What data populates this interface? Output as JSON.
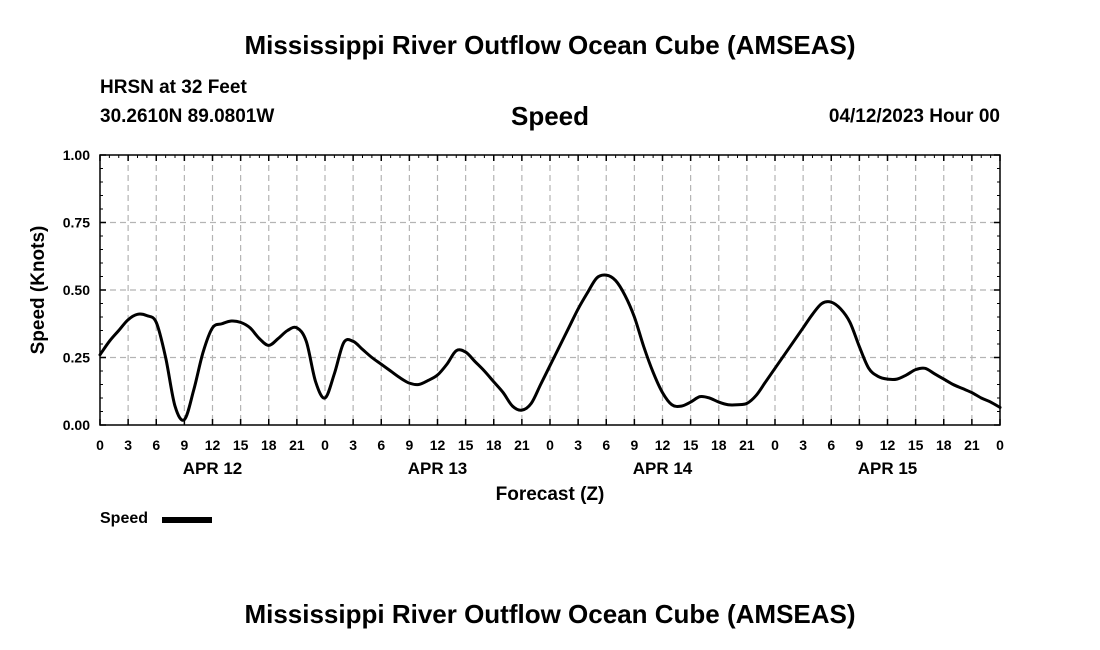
{
  "header": {
    "title": "Mississippi River Outflow Ocean Cube (AMSEAS)",
    "station": "HRSN at 32 Feet",
    "coords": "30.2610N  89.0801W",
    "variable": "Speed",
    "run_time": "04/12/2023 Hour 00"
  },
  "footer": {
    "title": "Mississippi River Outflow Ocean Cube (AMSEAS)"
  },
  "legend": {
    "label": "Speed"
  },
  "chart_data": {
    "type": "line",
    "xlabel": "Forecast (Z)",
    "ylabel": "Speed (Knots)",
    "ylim": [
      0,
      1.0
    ],
    "xlim_hours": [
      0,
      96
    ],
    "yticks": [
      "0.00",
      "0.25",
      "0.50",
      "0.75",
      "1.00"
    ],
    "xtick_labels": [
      "0",
      "3",
      "6",
      "9",
      "12",
      "15",
      "18",
      "21",
      "0",
      "3",
      "6",
      "9",
      "12",
      "15",
      "18",
      "21",
      "0",
      "3",
      "6",
      "9",
      "12",
      "15",
      "18",
      "21",
      "0",
      "3",
      "6",
      "9",
      "12",
      "15",
      "18",
      "21",
      "0"
    ],
    "day_labels": [
      {
        "label": "APR 12",
        "hour": 12
      },
      {
        "label": "APR 13",
        "hour": 36
      },
      {
        "label": "APR 14",
        "hour": 60
      },
      {
        "label": "APR 15",
        "hour": 84
      }
    ],
    "grid": true,
    "legend_position": "bottom-left",
    "line_color": "#000000",
    "series": [
      {
        "name": "Speed",
        "x": [
          0,
          1,
          2,
          3,
          4,
          5,
          6,
          7,
          8,
          9,
          10,
          11,
          12,
          13,
          14,
          15,
          16,
          17,
          18,
          19,
          20,
          21,
          22,
          23,
          24,
          25,
          26,
          27,
          28,
          29,
          30,
          31,
          32,
          33,
          34,
          35,
          36,
          37,
          38,
          39,
          40,
          41,
          42,
          43,
          44,
          45,
          46,
          47,
          48,
          49,
          50,
          51,
          52,
          53,
          54,
          55,
          56,
          57,
          58,
          59,
          60,
          61,
          62,
          63,
          64,
          65,
          66,
          67,
          68,
          69,
          70,
          71,
          72,
          73,
          74,
          75,
          76,
          77,
          78,
          79,
          80,
          81,
          82,
          83,
          84,
          85,
          86,
          87,
          88,
          89,
          90,
          91,
          92,
          93,
          94,
          95,
          96
        ],
        "values": [
          0.26,
          0.31,
          0.35,
          0.39,
          0.41,
          0.405,
          0.38,
          0.25,
          0.07,
          0.02,
          0.13,
          0.27,
          0.36,
          0.375,
          0.385,
          0.38,
          0.36,
          0.32,
          0.295,
          0.32,
          0.35,
          0.36,
          0.31,
          0.16,
          0.1,
          0.19,
          0.305,
          0.31,
          0.28,
          0.25,
          0.225,
          0.2,
          0.175,
          0.155,
          0.15,
          0.165,
          0.185,
          0.225,
          0.275,
          0.27,
          0.235,
          0.2,
          0.16,
          0.12,
          0.07,
          0.055,
          0.08,
          0.15,
          0.22,
          0.29,
          0.36,
          0.43,
          0.49,
          0.545,
          0.555,
          0.535,
          0.48,
          0.4,
          0.29,
          0.195,
          0.12,
          0.075,
          0.07,
          0.085,
          0.105,
          0.1,
          0.085,
          0.075,
          0.075,
          0.08,
          0.11,
          0.16,
          0.21,
          0.26,
          0.31,
          0.36,
          0.41,
          0.45,
          0.455,
          0.43,
          0.38,
          0.29,
          0.21,
          0.18,
          0.17,
          0.17,
          0.185,
          0.205,
          0.21,
          0.19,
          0.17,
          0.15,
          0.135,
          0.12,
          0.1,
          0.085,
          0.065
        ]
      }
    ]
  }
}
